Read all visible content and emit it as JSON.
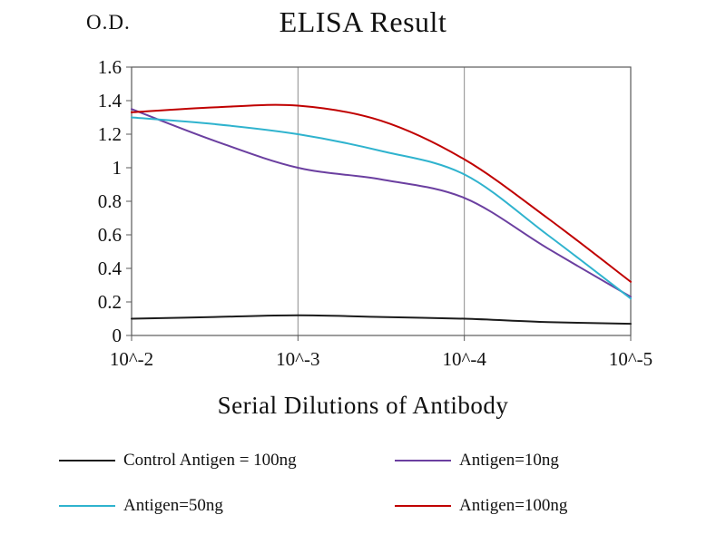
{
  "chart_data": {
    "type": "line",
    "title": "ELISA Result",
    "ylabel": "O.D.",
    "xlabel": "Serial Dilutions of Antibody",
    "categories": [
      "10^-2",
      "10^-3",
      "10^-4",
      "10^-5"
    ],
    "tick_positions": [
      0,
      1,
      2,
      3
    ],
    "x": [
      0,
      0.5,
      1,
      1.5,
      2,
      2.5,
      3
    ],
    "ylim": [
      0,
      1.6
    ],
    "yticks": [
      0,
      0.2,
      0.4,
      0.6,
      0.8,
      1,
      1.2,
      1.4,
      1.6
    ],
    "grid": "vertical-only",
    "legend_position": "bottom",
    "axis_color": "#595959",
    "gridline_color": "#8c8c8c",
    "series": [
      {
        "name": "Control Antigen = 100ng",
        "color": "#1c1c1c",
        "values": [
          0.1,
          0.11,
          0.12,
          0.11,
          0.1,
          0.08,
          0.07
        ]
      },
      {
        "name": "Antigen=10ng",
        "color": "#6b3fa0",
        "values": [
          1.35,
          1.16,
          1.0,
          0.93,
          0.82,
          0.52,
          0.23
        ]
      },
      {
        "name": "Antigen=50ng",
        "color": "#2fb3ce",
        "values": [
          1.3,
          1.26,
          1.2,
          1.1,
          0.96,
          0.6,
          0.22
        ]
      },
      {
        "name": "Antigen=100ng",
        "color": "#c00000",
        "values": [
          1.33,
          1.36,
          1.37,
          1.28,
          1.05,
          0.7,
          0.32
        ]
      }
    ]
  }
}
